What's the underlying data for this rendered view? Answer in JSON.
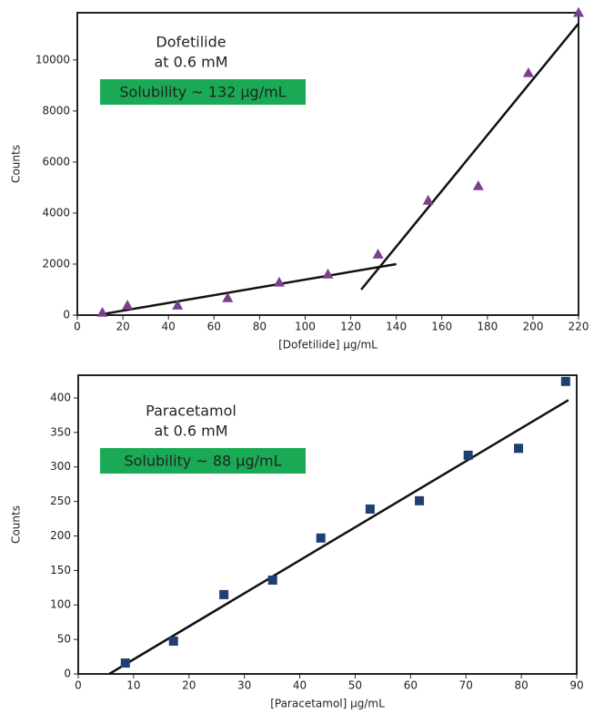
{
  "chart_data": [
    {
      "type": "scatter",
      "x_label": "[Dofetilide] µg/mL",
      "y_label": "Counts",
      "annotations": [
        "Dofetilide",
        "at 0.6 mM",
        "Solubility ~ 132 µg/mL"
      ],
      "xlim": [
        0,
        220
      ],
      "xticks": [
        0,
        20,
        40,
        60,
        80,
        100,
        120,
        140,
        160,
        180,
        200,
        220
      ],
      "ylim": [
        0,
        11850
      ],
      "yticks": [
        0,
        2000,
        4000,
        6000,
        8000,
        10000
      ],
      "marker": "triangle",
      "color": "#7b3f8c",
      "highlight_color": "#1aaa55",
      "x": [
        11,
        22,
        44,
        66,
        88.6,
        110,
        132,
        154,
        176,
        198,
        220
      ],
      "values": [
        107,
        390,
        390,
        680,
        1290,
        1610,
        2390,
        4500,
        5070,
        9500,
        11860
      ],
      "fits": [
        {
          "x": [
            11,
            140
          ],
          "y": [
            36,
            2000
          ]
        },
        {
          "x": [
            124.6,
            220
          ],
          "y": [
            1000,
            11430
          ]
        }
      ]
    },
    {
      "type": "scatter",
      "x_label": "[Paracetamol] µg/mL",
      "y_label": "Counts",
      "annotations": [
        "Paracetamol",
        "at 0.6 mM",
        "Solubility ~ 88 µg/mL"
      ],
      "xlim": [
        0,
        90
      ],
      "xticks": [
        0,
        10,
        20,
        30,
        40,
        50,
        60,
        70,
        80,
        90
      ],
      "ylim": [
        0,
        433
      ],
      "yticks": [
        0,
        50,
        100,
        150,
        200,
        250,
        300,
        350,
        400
      ],
      "marker": "square",
      "color": "#1f3f73",
      "highlight_color": "#1aaa55",
      "x": [
        8.5,
        17.2,
        26.3,
        35.1,
        43.8,
        52.7,
        61.6,
        70.4,
        79.5,
        88
      ],
      "values": [
        15.8,
        47.5,
        115,
        136,
        197,
        239,
        251,
        317,
        327,
        424
      ],
      "fits": [
        {
          "x": [
            5.6,
            88.5
          ],
          "y": [
            0,
            397
          ]
        }
      ]
    }
  ]
}
